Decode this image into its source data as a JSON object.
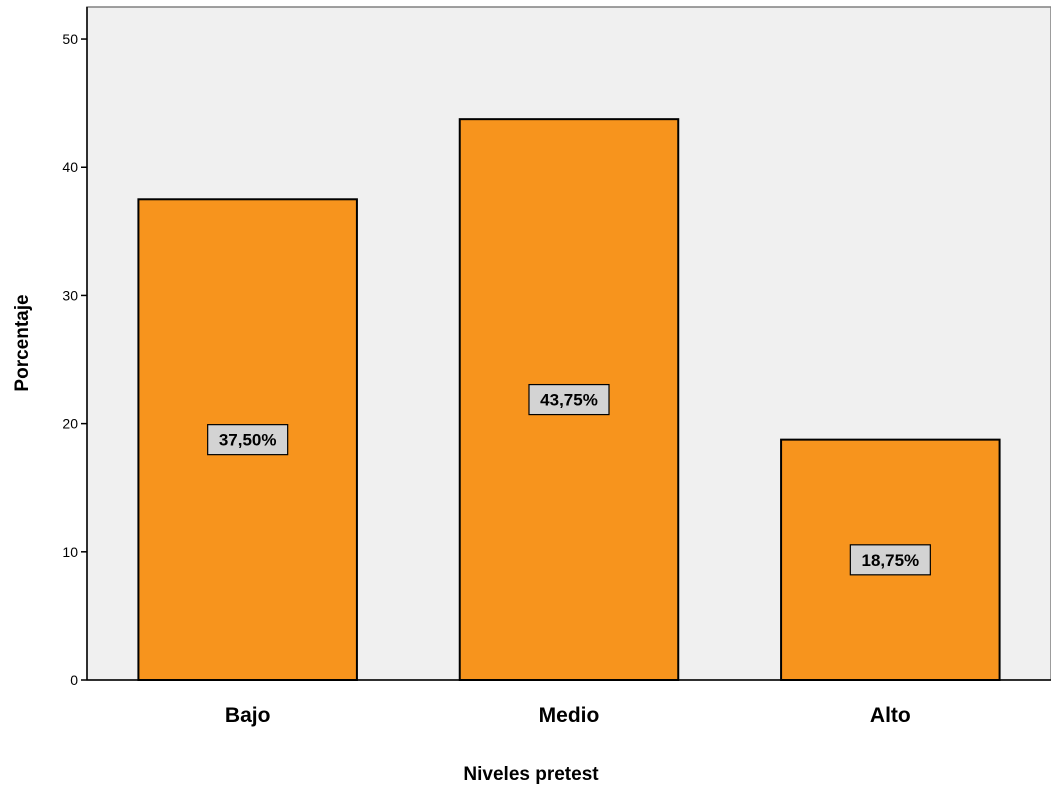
{
  "chart_data": {
    "type": "bar",
    "categories": [
      "Bajo",
      "Medio",
      "Alto"
    ],
    "values": [
      37.5,
      43.75,
      18.75
    ],
    "data_labels": [
      "37,50%",
      "43,75%",
      "18,75%"
    ],
    "title": "",
    "xlabel": "Niveles pretest",
    "ylabel": "Porcentaje",
    "ylim": [
      0,
      52.5
    ],
    "yticks": [
      0,
      10,
      20,
      30,
      40,
      50
    ],
    "grid": false,
    "colors": {
      "bar_fill": "#f7941d",
      "bar_stroke": "#000000",
      "plot_background": "#f0f0f0",
      "label_box_fill": "#d3d3d3"
    }
  }
}
